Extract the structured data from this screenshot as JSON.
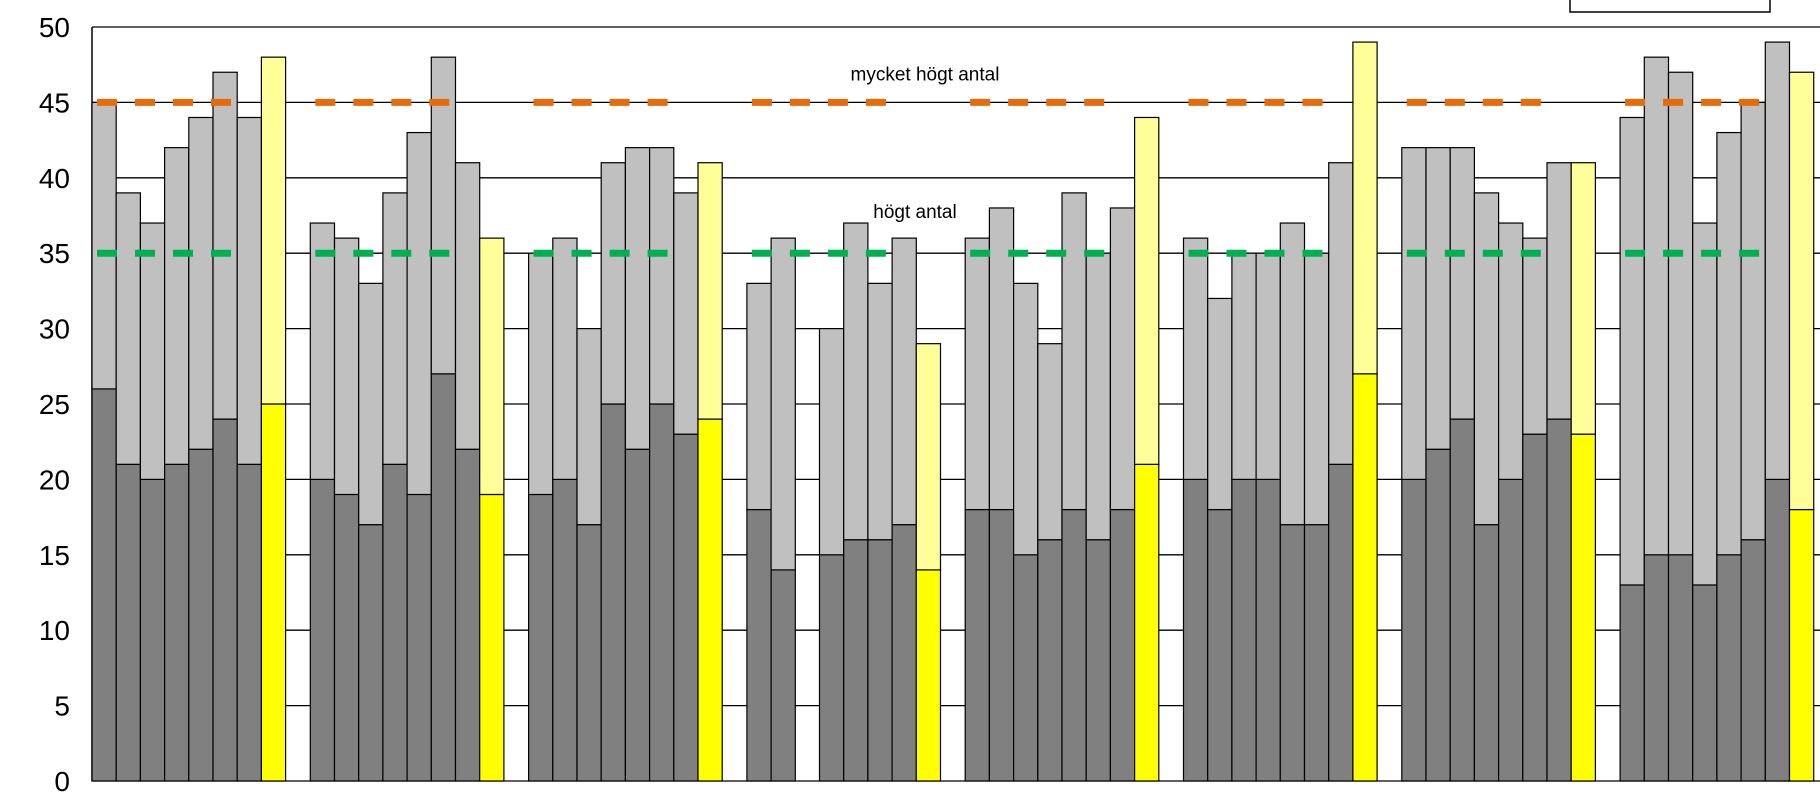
{
  "chart_data": {
    "type": "bar",
    "stacked": true,
    "ylim": [
      0,
      50
    ],
    "yticks": [
      "0",
      "5",
      "10",
      "15",
      "20",
      "25",
      "30",
      "35",
      "40",
      "45",
      "50"
    ],
    "grid": "horizontal",
    "legend": "top-right (cut off)",
    "colors": {
      "lower": "#808080",
      "upper": "#c0c0c0",
      "highlight_lower": "#ffff00",
      "highlight_upper": "#ffff99",
      "very_high_line": "#e46c0a",
      "high_line": "#00b050",
      "gridline": "#000000"
    },
    "reference_lines": [
      {
        "label": "mycket högt antal",
        "value": 45,
        "color": "#e46c0a"
      },
      {
        "label": "högt antal",
        "value": 35,
        "color": "#00b050"
      }
    ],
    "groups": [
      {
        "bars": [
          {
            "lower": 26,
            "total": 45
          },
          {
            "lower": 21,
            "total": 39
          },
          {
            "lower": 20,
            "total": 37
          },
          {
            "lower": 21,
            "total": 42
          },
          {
            "lower": 22,
            "total": 44
          },
          {
            "lower": 24,
            "total": 47
          },
          {
            "lower": 21,
            "total": 44
          },
          {
            "lower": 25,
            "total": 48,
            "highlight": true
          }
        ]
      },
      {
        "bars": [
          {
            "lower": 20,
            "total": 37
          },
          {
            "lower": 19,
            "total": 36
          },
          {
            "lower": 17,
            "total": 33
          },
          {
            "lower": 21,
            "total": 39
          },
          {
            "lower": 19,
            "total": 43
          },
          {
            "lower": 27,
            "total": 48
          },
          {
            "lower": 22,
            "total": 41
          },
          {
            "lower": 19,
            "total": 36,
            "highlight": true
          }
        ]
      },
      {
        "bars": [
          {
            "lower": 19,
            "total": 35
          },
          {
            "lower": 20,
            "total": 36
          },
          {
            "lower": 17,
            "total": 30
          },
          {
            "lower": 25,
            "total": 41
          },
          {
            "lower": 22,
            "total": 42
          },
          {
            "lower": 25,
            "total": 42
          },
          {
            "lower": 23,
            "total": 39
          },
          {
            "lower": 24,
            "total": 41,
            "highlight": true
          }
        ]
      },
      {
        "bars": [
          {
            "lower": 18,
            "total": 33
          },
          {
            "lower": 14,
            "total": 36
          },
          {
            "lower": 0,
            "total": 0
          },
          {
            "lower": 15,
            "total": 30
          },
          {
            "lower": 16,
            "total": 37
          },
          {
            "lower": 16,
            "total": 33
          },
          {
            "lower": 17,
            "total": 36
          },
          {
            "lower": 14,
            "total": 29,
            "highlight": true
          }
        ]
      },
      {
        "bars": [
          {
            "lower": 18,
            "total": 36
          },
          {
            "lower": 18,
            "total": 38
          },
          {
            "lower": 15,
            "total": 33
          },
          {
            "lower": 16,
            "total": 29
          },
          {
            "lower": 18,
            "total": 39
          },
          {
            "lower": 16,
            "total": 35
          },
          {
            "lower": 18,
            "total": 38
          },
          {
            "lower": 21,
            "total": 44,
            "highlight": true
          }
        ]
      },
      {
        "bars": [
          {
            "lower": 20,
            "total": 36
          },
          {
            "lower": 18,
            "total": 32
          },
          {
            "lower": 20,
            "total": 35
          },
          {
            "lower": 20,
            "total": 35
          },
          {
            "lower": 17,
            "total": 37
          },
          {
            "lower": 17,
            "total": 35
          },
          {
            "lower": 21,
            "total": 41
          },
          {
            "lower": 27,
            "total": 49,
            "highlight": true
          }
        ]
      },
      {
        "bars": [
          {
            "lower": 20,
            "total": 42
          },
          {
            "lower": 22,
            "total": 42
          },
          {
            "lower": 24,
            "total": 42
          },
          {
            "lower": 17,
            "total": 39
          },
          {
            "lower": 20,
            "total": 37
          },
          {
            "lower": 23,
            "total": 36
          },
          {
            "lower": 24,
            "total": 41
          },
          {
            "lower": 23,
            "total": 41,
            "highlight": true
          }
        ]
      },
      {
        "bars": [
          {
            "lower": 13,
            "total": 44
          },
          {
            "lower": 15,
            "total": 48
          },
          {
            "lower": 15,
            "total": 47
          },
          {
            "lower": 13,
            "total": 37
          },
          {
            "lower": 15,
            "total": 43
          },
          {
            "lower": 16,
            "total": 45
          },
          {
            "lower": 20,
            "total": 49
          },
          {
            "lower": 18,
            "total": 47,
            "highlight": true
          }
        ]
      }
    ]
  }
}
